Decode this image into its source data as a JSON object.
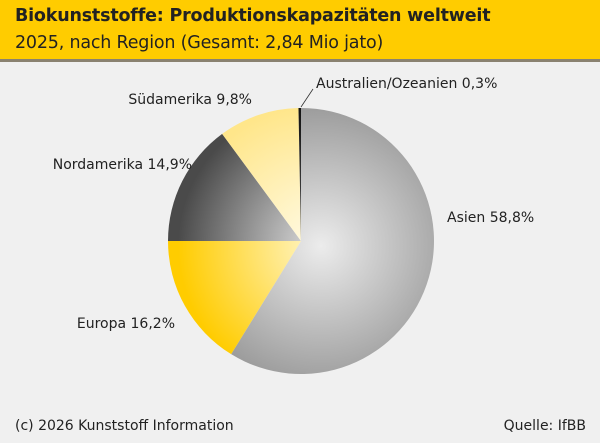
{
  "header": {
    "title": "Biokunststoffe: Produktionskapazitäten weltweit",
    "subtitle": "2025, nach Region (Gesamt: 2,84 Mio jato)"
  },
  "footer": {
    "copyright": "(c) 2026 Kunststoff Information",
    "source": "Quelle: IfBB"
  },
  "colors": {
    "header": "#ffcc00",
    "background": "#f0f0f0"
  },
  "chart_data": {
    "type": "pie",
    "title": "Biokunststoffe: Produktionskapazitäten weltweit",
    "subtitle": "2025, nach Region (Gesamt: 2,84 Mio jato)",
    "unit": "%",
    "start": "top, clockwise",
    "slices": [
      {
        "name": "Asien",
        "value": 58.8,
        "label": "Asien 58,8%",
        "colors": [
          "#ececec",
          "#9a9a9a"
        ]
      },
      {
        "name": "Europa",
        "value": 16.2,
        "label": "Europa 16,2%",
        "colors": [
          "#fff6cc",
          "#ffcc00"
        ]
      },
      {
        "name": "Nordamerika",
        "value": 14.9,
        "label": "Nordamerika 14,9%",
        "colors": [
          "#e0e0e0",
          "#4a4a4a"
        ]
      },
      {
        "name": "Südamerika",
        "value": 9.8,
        "label": "Südamerika 9,8%",
        "colors": [
          "#fffbe8",
          "#ffe68a"
        ]
      },
      {
        "name": "Australien/Ozeanien",
        "value": 0.3,
        "label": "Australien/Ozeanien 0,3%",
        "colors": [
          "#555555",
          "#111111"
        ]
      }
    ]
  }
}
